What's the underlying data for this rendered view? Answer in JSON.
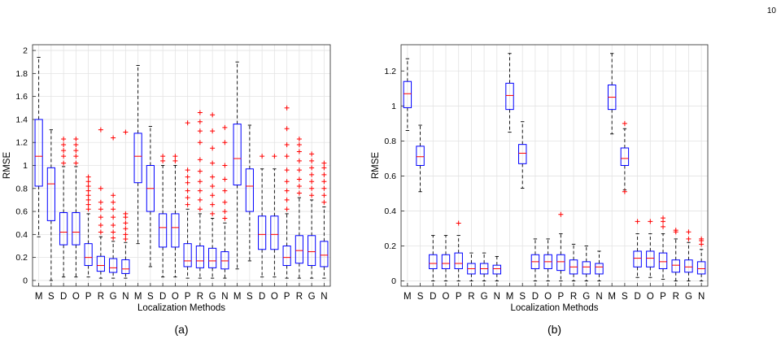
{
  "page": {
    "number": "10"
  },
  "chart_data": [
    {
      "type": "box",
      "panel_label": "(a)",
      "xlabel": "Localization Methods",
      "ylabel": "RMSE",
      "ylim": [
        -0.05,
        2.05
      ],
      "yticks": [
        0,
        0.2,
        0.4,
        0.6,
        0.8,
        1,
        1.2,
        1.4,
        1.6,
        1.8,
        2
      ],
      "ytick_labels": [
        "0",
        "0.2",
        "0.4",
        "0.6",
        "0.8",
        "1",
        "1.2",
        "1.4",
        "1.6",
        "1.8",
        "2"
      ],
      "grid": true,
      "categories": [
        "M",
        "S",
        "D",
        "O",
        "P",
        "R",
        "G",
        "N",
        "M",
        "S",
        "D",
        "O",
        "P",
        "R",
        "G",
        "N",
        "M",
        "S",
        "D",
        "O",
        "P",
        "R",
        "G",
        "N"
      ],
      "boxes": [
        {
          "wlo": 0.38,
          "q1": 0.82,
          "med": 1.08,
          "q3": 1.4,
          "whi": 1.94,
          "out": []
        },
        {
          "wlo": 0.0,
          "q1": 0.52,
          "med": 0.84,
          "q3": 0.98,
          "whi": 1.31,
          "out": []
        },
        {
          "wlo": 0.03,
          "q1": 0.31,
          "med": 0.42,
          "q3": 0.59,
          "whi": 0.99,
          "out": [
            1.02,
            1.08,
            1.13,
            1.18,
            1.23
          ]
        },
        {
          "wlo": 0.03,
          "q1": 0.31,
          "med": 0.42,
          "q3": 0.59,
          "whi": 0.99,
          "out": [
            1.02,
            1.08,
            1.13,
            1.18,
            1.23
          ]
        },
        {
          "wlo": 0.03,
          "q1": 0.13,
          "med": 0.2,
          "q3": 0.32,
          "whi": 0.58,
          "out": [
            0.62,
            0.66,
            0.7,
            0.74,
            0.78,
            0.82,
            0.86,
            0.9
          ]
        },
        {
          "wlo": 0.02,
          "q1": 0.08,
          "med": 0.13,
          "q3": 0.21,
          "whi": 0.38,
          "out": [
            0.42,
            0.48,
            0.55,
            0.62,
            0.68,
            0.8,
            1.31
          ]
        },
        {
          "wlo": 0.02,
          "q1": 0.07,
          "med": 0.11,
          "q3": 0.19,
          "whi": 0.34,
          "out": [
            0.37,
            0.42,
            0.48,
            0.55,
            0.62,
            0.68,
            0.74,
            1.24
          ]
        },
        {
          "wlo": 0.02,
          "q1": 0.06,
          "med": 0.1,
          "q3": 0.18,
          "whi": 0.33,
          "out": [
            0.36,
            0.4,
            0.45,
            0.5,
            0.55,
            0.58,
            1.29
          ]
        },
        {
          "wlo": 0.32,
          "q1": 0.85,
          "med": 1.08,
          "q3": 1.28,
          "whi": 1.87,
          "out": []
        },
        {
          "wlo": 0.12,
          "q1": 0.6,
          "med": 0.8,
          "q3": 1.0,
          "whi": 1.34,
          "out": []
        },
        {
          "wlo": 0.03,
          "q1": 0.29,
          "med": 0.46,
          "q3": 0.58,
          "whi": 1.0,
          "out": [
            1.04,
            1.08
          ]
        },
        {
          "wlo": 0.03,
          "q1": 0.29,
          "med": 0.46,
          "q3": 0.58,
          "whi": 1.0,
          "out": [
            1.04,
            1.08
          ]
        },
        {
          "wlo": 0.02,
          "q1": 0.12,
          "med": 0.17,
          "q3": 0.32,
          "whi": 0.62,
          "out": [
            0.66,
            0.72,
            0.78,
            0.85,
            0.9,
            0.96,
            1.37
          ]
        },
        {
          "wlo": 0.02,
          "q1": 0.11,
          "med": 0.17,
          "q3": 0.3,
          "whi": 0.58,
          "out": [
            0.62,
            0.7,
            0.78,
            0.86,
            0.95,
            1.05,
            1.2,
            1.3,
            1.38,
            1.46
          ]
        },
        {
          "wlo": 0.02,
          "q1": 0.11,
          "med": 0.17,
          "q3": 0.28,
          "whi": 0.54,
          "out": [
            0.58,
            0.66,
            0.74,
            0.82,
            0.9,
            1.02,
            1.15,
            1.3,
            1.44
          ]
        },
        {
          "wlo": 0.02,
          "q1": 0.1,
          "med": 0.17,
          "q3": 0.25,
          "whi": 0.5,
          "out": [
            0.54,
            0.6,
            0.68,
            0.78,
            0.88,
            1.0,
            1.2,
            1.33
          ]
        },
        {
          "wlo": 0.1,
          "q1": 0.83,
          "med": 1.06,
          "q3": 1.36,
          "whi": 1.9,
          "out": []
        },
        {
          "wlo": 0.17,
          "q1": 0.6,
          "med": 0.82,
          "q3": 0.97,
          "whi": 1.35,
          "out": []
        },
        {
          "wlo": 0.03,
          "q1": 0.27,
          "med": 0.4,
          "q3": 0.56,
          "whi": 0.97,
          "out": [
            1.08
          ]
        },
        {
          "wlo": 0.03,
          "q1": 0.27,
          "med": 0.4,
          "q3": 0.56,
          "whi": 0.97,
          "out": [
            1.08
          ]
        },
        {
          "wlo": 0.02,
          "q1": 0.13,
          "med": 0.2,
          "q3": 0.3,
          "whi": 0.58,
          "out": [
            0.62,
            0.7,
            0.78,
            0.86,
            0.96,
            1.08,
            1.18,
            1.32,
            1.5
          ]
        },
        {
          "wlo": 0.02,
          "q1": 0.15,
          "med": 0.26,
          "q3": 0.39,
          "whi": 0.72,
          "out": [
            0.76,
            0.82,
            0.88,
            0.96,
            1.04,
            1.12,
            1.18,
            1.23
          ]
        },
        {
          "wlo": 0.02,
          "q1": 0.13,
          "med": 0.25,
          "q3": 0.39,
          "whi": 0.7,
          "out": [
            0.74,
            0.8,
            0.86,
            0.92,
            0.98,
            1.04,
            1.1
          ]
        },
        {
          "wlo": 0.02,
          "q1": 0.12,
          "med": 0.22,
          "q3": 0.34,
          "whi": 0.64,
          "out": [
            0.68,
            0.74,
            0.8,
            0.86,
            0.92,
            0.98,
            1.02
          ]
        }
      ]
    },
    {
      "type": "box",
      "panel_label": "(b)",
      "xlabel": "Localization Methods",
      "ylabel": "RMSE",
      "ylim": [
        -0.03,
        1.35
      ],
      "yticks": [
        0,
        0.2,
        0.4,
        0.6,
        0.8,
        1,
        1.2
      ],
      "ytick_labels": [
        "0",
        "0.2",
        "0.4",
        "0.6",
        "0.8",
        "1",
        "1.2"
      ],
      "grid": true,
      "categories": [
        "M",
        "S",
        "D",
        "O",
        "P",
        "R",
        "G",
        "N",
        "M",
        "S",
        "D",
        "O",
        "P",
        "R",
        "G",
        "N",
        "M",
        "S",
        "D",
        "O",
        "P",
        "R",
        "G",
        "N"
      ],
      "boxes": [
        {
          "wlo": 0.86,
          "q1": 0.99,
          "med": 1.07,
          "q3": 1.14,
          "whi": 1.27,
          "out": []
        },
        {
          "wlo": 0.51,
          "q1": 0.66,
          "med": 0.71,
          "q3": 0.77,
          "whi": 0.89,
          "out": []
        },
        {
          "wlo": 0.0,
          "q1": 0.07,
          "med": 0.1,
          "q3": 0.15,
          "whi": 0.26,
          "out": []
        },
        {
          "wlo": 0.0,
          "q1": 0.07,
          "med": 0.1,
          "q3": 0.15,
          "whi": 0.26,
          "out": []
        },
        {
          "wlo": 0.0,
          "q1": 0.07,
          "med": 0.1,
          "q3": 0.16,
          "whi": 0.26,
          "out": [
            0.33
          ]
        },
        {
          "wlo": 0.0,
          "q1": 0.04,
          "med": 0.07,
          "q3": 0.1,
          "whi": 0.16,
          "out": []
        },
        {
          "wlo": 0.0,
          "q1": 0.04,
          "med": 0.07,
          "q3": 0.1,
          "whi": 0.16,
          "out": []
        },
        {
          "wlo": 0.0,
          "q1": 0.04,
          "med": 0.07,
          "q3": 0.09,
          "whi": 0.14,
          "out": []
        },
        {
          "wlo": 0.85,
          "q1": 0.98,
          "med": 1.06,
          "q3": 1.13,
          "whi": 1.3,
          "out": []
        },
        {
          "wlo": 0.53,
          "q1": 0.67,
          "med": 0.73,
          "q3": 0.78,
          "whi": 0.91,
          "out": []
        },
        {
          "wlo": 0.0,
          "q1": 0.07,
          "med": 0.11,
          "q3": 0.15,
          "whi": 0.24,
          "out": []
        },
        {
          "wlo": 0.0,
          "q1": 0.07,
          "med": 0.11,
          "q3": 0.15,
          "whi": 0.24,
          "out": []
        },
        {
          "wlo": 0.0,
          "q1": 0.06,
          "med": 0.11,
          "q3": 0.15,
          "whi": 0.27,
          "out": [
            0.38
          ]
        },
        {
          "wlo": 0.0,
          "q1": 0.04,
          "med": 0.08,
          "q3": 0.12,
          "whi": 0.21,
          "out": []
        },
        {
          "wlo": 0.0,
          "q1": 0.04,
          "med": 0.08,
          "q3": 0.11,
          "whi": 0.2,
          "out": []
        },
        {
          "wlo": 0.0,
          "q1": 0.04,
          "med": 0.08,
          "q3": 0.1,
          "whi": 0.17,
          "out": []
        },
        {
          "wlo": 0.84,
          "q1": 0.98,
          "med": 1.05,
          "q3": 1.12,
          "whi": 1.3,
          "out": []
        },
        {
          "wlo": 0.52,
          "q1": 0.66,
          "med": 0.7,
          "q3": 0.76,
          "whi": 0.87,
          "out": [
            0.51,
            0.9
          ]
        },
        {
          "wlo": 0.02,
          "q1": 0.08,
          "med": 0.13,
          "q3": 0.17,
          "whi": 0.27,
          "out": [
            0.34
          ]
        },
        {
          "wlo": 0.02,
          "q1": 0.08,
          "med": 0.13,
          "q3": 0.17,
          "whi": 0.27,
          "out": [
            0.34
          ]
        },
        {
          "wlo": 0.01,
          "q1": 0.07,
          "med": 0.11,
          "q3": 0.16,
          "whi": 0.27,
          "out": [
            0.31,
            0.34,
            0.36
          ]
        },
        {
          "wlo": 0.0,
          "q1": 0.05,
          "med": 0.09,
          "q3": 0.12,
          "whi": 0.24,
          "out": [
            0.28,
            0.29
          ]
        },
        {
          "wlo": 0.0,
          "q1": 0.05,
          "med": 0.08,
          "q3": 0.12,
          "whi": 0.22,
          "out": [
            0.24,
            0.28
          ]
        },
        {
          "wlo": 0.0,
          "q1": 0.04,
          "med": 0.07,
          "q3": 0.11,
          "whi": 0.18,
          "out": [
            0.21,
            0.23,
            0.24
          ]
        }
      ]
    }
  ],
  "colors": {
    "box": "#0000ff",
    "median": "#ff0000",
    "outlier": "#ff0000",
    "whisker": "#000000",
    "grid": "#e3e3e3"
  }
}
